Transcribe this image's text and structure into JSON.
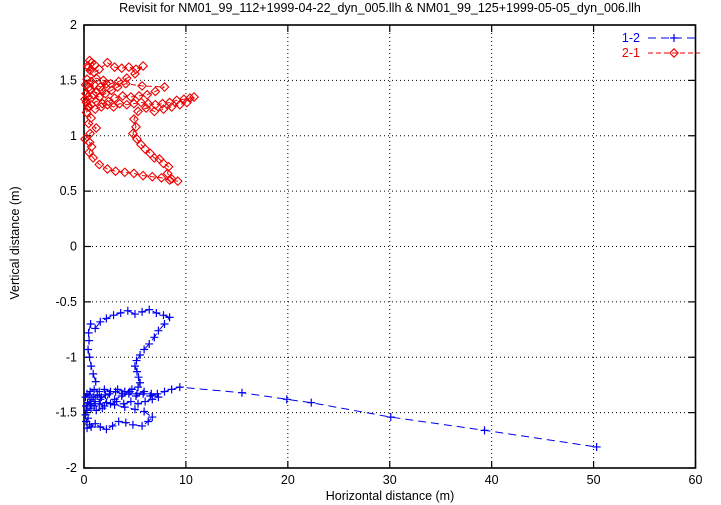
{
  "chart_data": {
    "type": "scatter",
    "title": "Revisit for NM01_99_112+1999-04-22_dyn_005.llh & NM01_99_125+1999-05-05_dyn_006.llh",
    "xlabel": "Horizontal distance (m)",
    "ylabel": "Vertical distance (m)",
    "xlim": [
      0,
      60
    ],
    "ylim": [
      -2,
      2
    ],
    "x_ticks": [
      0,
      10,
      20,
      30,
      40,
      50,
      60
    ],
    "x_tick_labels": [
      "0",
      "10",
      "20",
      "30",
      "40",
      "50",
      "60"
    ],
    "y_ticks": [
      -2,
      -1.5,
      -1,
      -0.5,
      0,
      0.5,
      1,
      1.5,
      2
    ],
    "y_tick_labels": [
      "-2",
      "-1.5",
      "-1",
      "-0.5",
      "0",
      "0.5",
      "1",
      "1.5",
      "2"
    ],
    "grid": true,
    "grid_style": "dotted-black",
    "legend_position": "top-right",
    "background": "#ffffff",
    "border_color": "#000000",
    "series": [
      {
        "name": "1-2",
        "color": "#0000ee",
        "marker": "plus",
        "linestyle": "dashed",
        "dash": "8,5",
        "points": [
          [
            1.15,
            -1.22
          ],
          [
            0.9,
            -1.15
          ],
          [
            0.7,
            -1.08
          ],
          [
            0.55,
            -1.0
          ],
          [
            0.4,
            -0.93
          ],
          [
            0.5,
            -0.85
          ],
          [
            0.45,
            -0.78
          ],
          [
            0.65,
            -0.7
          ],
          [
            1.1,
            -0.74
          ],
          [
            1.6,
            -0.68
          ],
          [
            2.2,
            -0.65
          ],
          [
            2.9,
            -0.62
          ],
          [
            3.6,
            -0.6
          ],
          [
            4.3,
            -0.58
          ],
          [
            5.0,
            -0.61
          ],
          [
            5.7,
            -0.59
          ],
          [
            6.4,
            -0.57
          ],
          [
            7.1,
            -0.6
          ],
          [
            7.8,
            -0.62
          ],
          [
            8.4,
            -0.64
          ],
          [
            7.9,
            -0.7
          ],
          [
            7.3,
            -0.76
          ],
          [
            6.9,
            -0.82
          ],
          [
            6.4,
            -0.88
          ],
          [
            5.9,
            -0.93
          ],
          [
            5.5,
            -0.98
          ],
          [
            5.15,
            -1.03
          ],
          [
            5.0,
            -1.08
          ],
          [
            5.2,
            -1.13
          ],
          [
            5.35,
            -1.18
          ],
          [
            5.5,
            -1.23
          ],
          [
            5.3,
            -1.27
          ],
          [
            4.7,
            -1.29
          ],
          [
            4.0,
            -1.31
          ],
          [
            3.3,
            -1.29
          ],
          [
            2.6,
            -1.31
          ],
          [
            2.0,
            -1.29
          ],
          [
            1.5,
            -1.31
          ],
          [
            1.0,
            -1.29
          ],
          [
            0.6,
            -1.31
          ],
          [
            0.3,
            -1.33
          ],
          [
            0.15,
            -1.36
          ],
          [
            0.5,
            -1.34
          ],
          [
            0.9,
            -1.36
          ],
          [
            1.3,
            -1.34
          ],
          [
            1.7,
            -1.36
          ],
          [
            2.1,
            -1.34
          ],
          [
            1.6,
            -1.38
          ],
          [
            1.1,
            -1.4
          ],
          [
            0.7,
            -1.38
          ],
          [
            0.35,
            -1.41
          ],
          [
            0.2,
            -1.44
          ],
          [
            0.6,
            -1.42
          ],
          [
            1.0,
            -1.44
          ],
          [
            1.5,
            -1.42
          ],
          [
            2.0,
            -1.44
          ],
          [
            2.6,
            -1.42
          ],
          [
            3.2,
            -1.4
          ],
          [
            3.9,
            -1.42
          ],
          [
            4.6,
            -1.4
          ],
          [
            5.3,
            -1.42
          ],
          [
            6.0,
            -1.4
          ],
          [
            6.7,
            -1.38
          ],
          [
            7.3,
            -1.36
          ],
          [
            6.6,
            -1.33
          ],
          [
            5.9,
            -1.31
          ],
          [
            5.2,
            -1.33
          ],
          [
            4.5,
            -1.31
          ],
          [
            3.8,
            -1.33
          ],
          [
            3.1,
            -1.31
          ],
          [
            2.5,
            -1.33
          ],
          [
            1.8,
            -1.46
          ],
          [
            1.2,
            -1.48
          ],
          [
            0.7,
            -1.46
          ],
          [
            0.3,
            -1.48
          ],
          [
            0.15,
            -1.52
          ],
          [
            0.4,
            -1.55
          ],
          [
            0.2,
            -1.58
          ],
          [
            0.55,
            -1.61
          ],
          [
            0.3,
            -1.64
          ],
          [
            0.7,
            -1.63
          ],
          [
            1.1,
            -1.6
          ],
          [
            1.6,
            -1.63
          ],
          [
            2.2,
            -1.65
          ],
          [
            2.8,
            -1.62
          ],
          [
            3.4,
            -1.58
          ],
          [
            4.1,
            -1.59
          ],
          [
            4.8,
            -1.61
          ],
          [
            5.7,
            -1.62
          ],
          [
            6.3,
            -1.58
          ],
          [
            6.7,
            -1.54
          ],
          [
            5.9,
            -1.49
          ],
          [
            5.0,
            -1.47
          ],
          [
            4.0,
            -1.45
          ],
          [
            3.0,
            -1.43
          ],
          [
            2.2,
            -1.41
          ],
          [
            3.0,
            -1.38
          ],
          [
            3.7,
            -1.35
          ],
          [
            4.4,
            -1.33
          ],
          [
            5.1,
            -1.35
          ],
          [
            5.8,
            -1.33
          ],
          [
            6.5,
            -1.35
          ],
          [
            7.2,
            -1.33
          ],
          [
            7.9,
            -1.31
          ],
          [
            8.6,
            -1.29
          ],
          [
            9.4,
            -1.27
          ],
          [
            15.5,
            -1.32
          ],
          [
            19.9,
            -1.38
          ],
          [
            22.3,
            -1.41
          ],
          [
            30.1,
            -1.54
          ],
          [
            39.3,
            -1.66
          ],
          [
            50.3,
            -1.81
          ]
        ]
      },
      {
        "name": "2-1",
        "color": "#ee0000",
        "marker": "diamond",
        "linestyle": "dashed",
        "dash": "5,3",
        "points": [
          [
            0.45,
            1.62
          ],
          [
            0.75,
            1.66
          ],
          [
            1.05,
            1.64
          ],
          [
            0.55,
            1.68
          ],
          [
            0.35,
            1.63
          ],
          [
            0.6,
            1.59
          ],
          [
            1.0,
            1.57
          ],
          [
            1.5,
            1.6
          ],
          [
            2.3,
            1.66
          ],
          [
            3.0,
            1.62
          ],
          [
            3.7,
            1.61
          ],
          [
            4.4,
            1.62
          ],
          [
            5.1,
            1.6
          ],
          [
            5.8,
            1.63
          ],
          [
            5.0,
            1.56
          ],
          [
            4.2,
            1.52
          ],
          [
            3.4,
            1.49
          ],
          [
            2.6,
            1.47
          ],
          [
            1.9,
            1.5
          ],
          [
            1.2,
            1.52
          ],
          [
            0.7,
            1.49
          ],
          [
            0.3,
            1.51
          ],
          [
            0.15,
            1.46
          ],
          [
            0.5,
            1.44
          ],
          [
            1.0,
            1.46
          ],
          [
            1.6,
            1.44
          ],
          [
            2.2,
            1.47
          ],
          [
            1.8,
            1.41
          ],
          [
            1.2,
            1.39
          ],
          [
            0.6,
            1.41
          ],
          [
            0.2,
            1.38
          ],
          [
            0.4,
            1.35
          ],
          [
            0.9,
            1.37
          ],
          [
            1.5,
            1.35
          ],
          [
            2.1,
            1.38
          ],
          [
            2.7,
            1.41
          ],
          [
            3.3,
            1.44
          ],
          [
            4.1,
            1.47
          ],
          [
            5.7,
            1.45
          ],
          [
            7.9,
            1.44
          ],
          [
            7.0,
            1.4
          ],
          [
            6.2,
            1.37
          ],
          [
            5.4,
            1.36
          ],
          [
            4.6,
            1.35
          ],
          [
            3.8,
            1.36
          ],
          [
            3.0,
            1.34
          ],
          [
            2.4,
            1.31
          ],
          [
            1.8,
            1.29
          ],
          [
            1.2,
            1.31
          ],
          [
            0.7,
            1.28
          ],
          [
            0.25,
            1.3
          ],
          [
            0.1,
            1.33
          ],
          [
            0.5,
            1.26
          ],
          [
            1.1,
            1.24
          ],
          [
            1.7,
            1.26
          ],
          [
            2.3,
            1.28
          ],
          [
            2.9,
            1.26
          ],
          [
            3.5,
            1.29
          ],
          [
            4.2,
            1.28
          ],
          [
            4.9,
            1.29
          ],
          [
            5.6,
            1.3
          ],
          [
            6.3,
            1.29
          ],
          [
            7.0,
            1.28
          ],
          [
            7.7,
            1.29
          ],
          [
            8.4,
            1.3
          ],
          [
            9.1,
            1.32
          ],
          [
            9.8,
            1.33
          ],
          [
            10.4,
            1.34
          ],
          [
            10.8,
            1.35
          ],
          [
            10.1,
            1.3
          ],
          [
            9.4,
            1.28
          ],
          [
            8.6,
            1.26
          ],
          [
            7.8,
            1.24
          ],
          [
            6.9,
            1.22
          ],
          [
            6.1,
            1.25
          ],
          [
            5.3,
            1.22
          ],
          [
            4.9,
            1.15
          ],
          [
            5.1,
            1.08
          ],
          [
            4.8,
            1.02
          ],
          [
            5.2,
            0.97
          ],
          [
            5.6,
            0.92
          ],
          [
            6.0,
            0.88
          ],
          [
            6.5,
            0.84
          ],
          [
            6.9,
            0.8
          ],
          [
            7.4,
            0.79
          ],
          [
            7.8,
            0.75
          ],
          [
            8.3,
            0.72
          ],
          [
            8.2,
            0.66
          ],
          [
            8.6,
            0.61
          ],
          [
            9.2,
            0.59
          ],
          [
            8.4,
            0.6
          ],
          [
            7.6,
            0.62
          ],
          [
            6.7,
            0.63
          ],
          [
            5.8,
            0.64
          ],
          [
            4.9,
            0.66
          ],
          [
            4.0,
            0.67
          ],
          [
            3.1,
            0.68
          ],
          [
            2.3,
            0.7
          ],
          [
            1.5,
            0.74
          ],
          [
            0.9,
            0.8
          ],
          [
            0.5,
            0.85
          ],
          [
            0.75,
            0.9
          ],
          [
            0.55,
            0.94
          ],
          [
            0.1,
            0.97
          ],
          [
            0.6,
            1.02
          ],
          [
            1.2,
            1.07
          ],
          [
            0.45,
            1.11
          ],
          [
            0.7,
            1.16
          ],
          [
            0.25,
            1.21
          ],
          [
            0.4,
            1.26
          ]
        ]
      }
    ]
  }
}
